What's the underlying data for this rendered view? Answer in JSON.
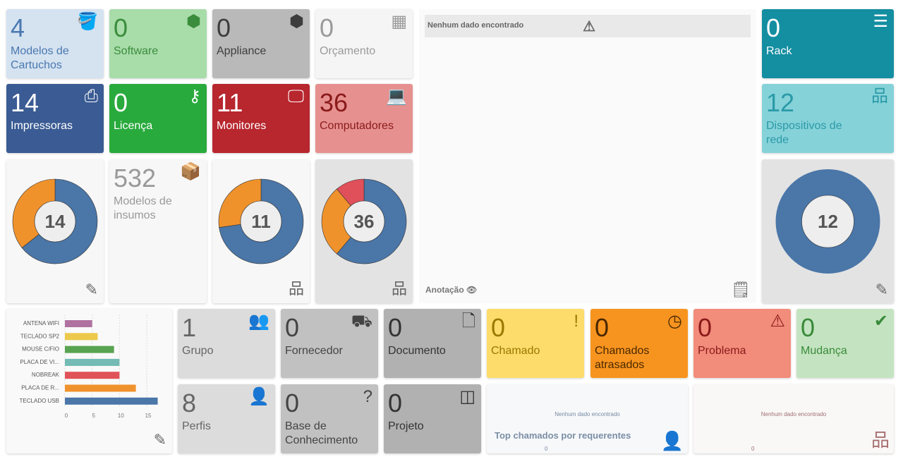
{
  "cards": [
    {
      "id": "modelos-cartuchos",
      "value": "4",
      "label": "Modelos de Cartuchos",
      "icon": "paint-bucket-icon",
      "glyph": "🪣",
      "bg": "#d5e2f0",
      "fg": "#4a78b0"
    },
    {
      "id": "software",
      "value": "0",
      "label": "Software",
      "icon": "cube-icon",
      "glyph": "⬢",
      "bg": "#a8dca9",
      "fg": "#3a8d3c"
    },
    {
      "id": "appliance",
      "value": "0",
      "label": "Appliance",
      "icon": "cubes-icon",
      "glyph": "⬢",
      "bg": "#b9b9b9",
      "fg": "#3d3d3d"
    },
    {
      "id": "orcamento",
      "value": "0",
      "label": "Orçamento",
      "icon": "calculator-icon",
      "glyph": "▦",
      "bg": "#f5f5f5",
      "fg": "#9a9a9a"
    },
    {
      "id": "impressoras",
      "value": "14",
      "label": "Impressoras",
      "icon": "printer-icon",
      "glyph": "⎙",
      "bg": "#3a5b93",
      "fg": "#ffffff"
    },
    {
      "id": "licenca",
      "value": "0",
      "label": "Licença",
      "icon": "key-icon",
      "glyph": "⚷",
      "bg": "#29aa3d",
      "fg": "#ffffff"
    },
    {
      "id": "monitores",
      "value": "11",
      "label": "Monitores",
      "icon": "monitor-icon",
      "glyph": "🖵",
      "bg": "#b8262e",
      "fg": "#ffffff"
    },
    {
      "id": "computadores",
      "value": "36",
      "label": "Computadores",
      "icon": "laptop-icon",
      "glyph": "💻",
      "bg": "#e69190",
      "fg": "#8b1a1a"
    },
    {
      "id": "rack",
      "value": "0",
      "label": "Rack",
      "icon": "server-icon",
      "glyph": "☰",
      "bg": "#148ea1",
      "fg": "#ffffff"
    },
    {
      "id": "dispositivos-rede",
      "value": "12",
      "label": "Dispositivos de rede",
      "icon": "network-icon",
      "glyph": "品",
      "bg": "#86d2d9",
      "fg": "#2a9aa8"
    },
    {
      "id": "modelos-insumos",
      "value": "532",
      "label": "Modelos de insumos",
      "icon": "box-open-icon",
      "glyph": "📦",
      "bg": "#f7f7f7",
      "fg": "#999999"
    },
    {
      "id": "grupo",
      "value": "1",
      "label": "Grupo",
      "icon": "users-icon",
      "glyph": "👥",
      "bg": "#dcdcdc",
      "fg": "#666666"
    },
    {
      "id": "fornecedor",
      "value": "0",
      "label": "Fornecedor",
      "icon": "dolly-icon",
      "glyph": "⛟",
      "bg": "#c1c1c1",
      "fg": "#444444"
    },
    {
      "id": "documento",
      "value": "0",
      "label": "Documento",
      "icon": "file-icon",
      "glyph": "🗋",
      "bg": "#b1b1b1",
      "fg": "#333333"
    },
    {
      "id": "chamado",
      "value": "0",
      "label": "Chamado",
      "icon": "exclamation-circle-icon",
      "glyph": "!",
      "bg": "#fddc6b",
      "fg": "#9c7800"
    },
    {
      "id": "chamados-atrasados",
      "value": "0",
      "label": "Chamados atrasados",
      "icon": "clock-icon",
      "glyph": "◷",
      "bg": "#f7941f",
      "fg": "#4a2800"
    },
    {
      "id": "problema",
      "value": "0",
      "label": "Problema",
      "icon": "warning-icon",
      "glyph": "⚠",
      "bg": "#f28c7b",
      "fg": "#8b1a1a"
    },
    {
      "id": "mudanca",
      "value": "0",
      "label": "Mudança",
      "icon": "clipboard-check-icon",
      "glyph": "✔",
      "bg": "#c4e4c1",
      "fg": "#3a8a3a"
    },
    {
      "id": "perfis",
      "value": "8",
      "label": "Perfis",
      "icon": "user-check-icon",
      "glyph": "👤",
      "bg": "#dcdcdc",
      "fg": "#666666"
    },
    {
      "id": "base-conhecimento",
      "value": "0",
      "label": "Base de Conhecimento",
      "icon": "question-icon",
      "glyph": "?",
      "bg": "#c1c1c1",
      "fg": "#444444"
    },
    {
      "id": "projeto",
      "value": "0",
      "label": "Projeto",
      "icon": "columns-icon",
      "glyph": "◫",
      "bg": "#b1b1b1",
      "fg": "#333333"
    }
  ],
  "donuts": [
    {
      "id": "impressoras-donut",
      "total": "14",
      "values": [
        9,
        5
      ],
      "colors": [
        "#4a76a8",
        "#f0922c"
      ],
      "bg": "#f7f7f7",
      "footer_icon": "edit-icon"
    },
    {
      "id": "monitores-donut",
      "total": "11",
      "values": [
        8,
        3
      ],
      "colors": [
        "#4a76a8",
        "#f0922c"
      ],
      "bg": "#f7f7f7",
      "footer_icon": "sitemap-icon"
    },
    {
      "id": "computadores-donut",
      "total": "36",
      "values": [
        22,
        10,
        4
      ],
      "colors": [
        "#4a76a8",
        "#f0922c",
        "#e0505a"
      ],
      "bg": "#e3e3e3",
      "footer_icon": "sitemap-icon"
    },
    {
      "id": "rede-donut",
      "total": "12",
      "values": [
        12
      ],
      "colors": [
        "#4a76a8"
      ],
      "bg": "#e3e3e3",
      "footer_icon": "edit-icon"
    }
  ],
  "note": {
    "empty": "Nenhum dado encontrado",
    "footer": "Anotação"
  },
  "chart_data": {
    "type": "bar",
    "orientation": "horizontal",
    "categories": [
      "ANTENA WIFI",
      "TECLADO SP2",
      "MOUSE C/FIO",
      "PLACA DE VI...",
      "NOBREAK",
      "PLACA DE R...",
      "TECLADO USB"
    ],
    "values": [
      5,
      6,
      9,
      10,
      10,
      13,
      17
    ],
    "colors": [
      "#b072a0",
      "#ecc94b",
      "#58a34f",
      "#73bbb4",
      "#e05358",
      "#f0922c",
      "#4a76a8"
    ],
    "xticks": [
      "0",
      "5",
      "10",
      "15"
    ],
    "xlim": [
      0,
      19
    ]
  },
  "top_requerentes": {
    "empty": "Nenhum dado encontrado",
    "title": "Top chamados por requerentes",
    "zero": "0"
  },
  "org_chart": {
    "empty": "Nenhum dado encontrado",
    "zero": "0"
  }
}
